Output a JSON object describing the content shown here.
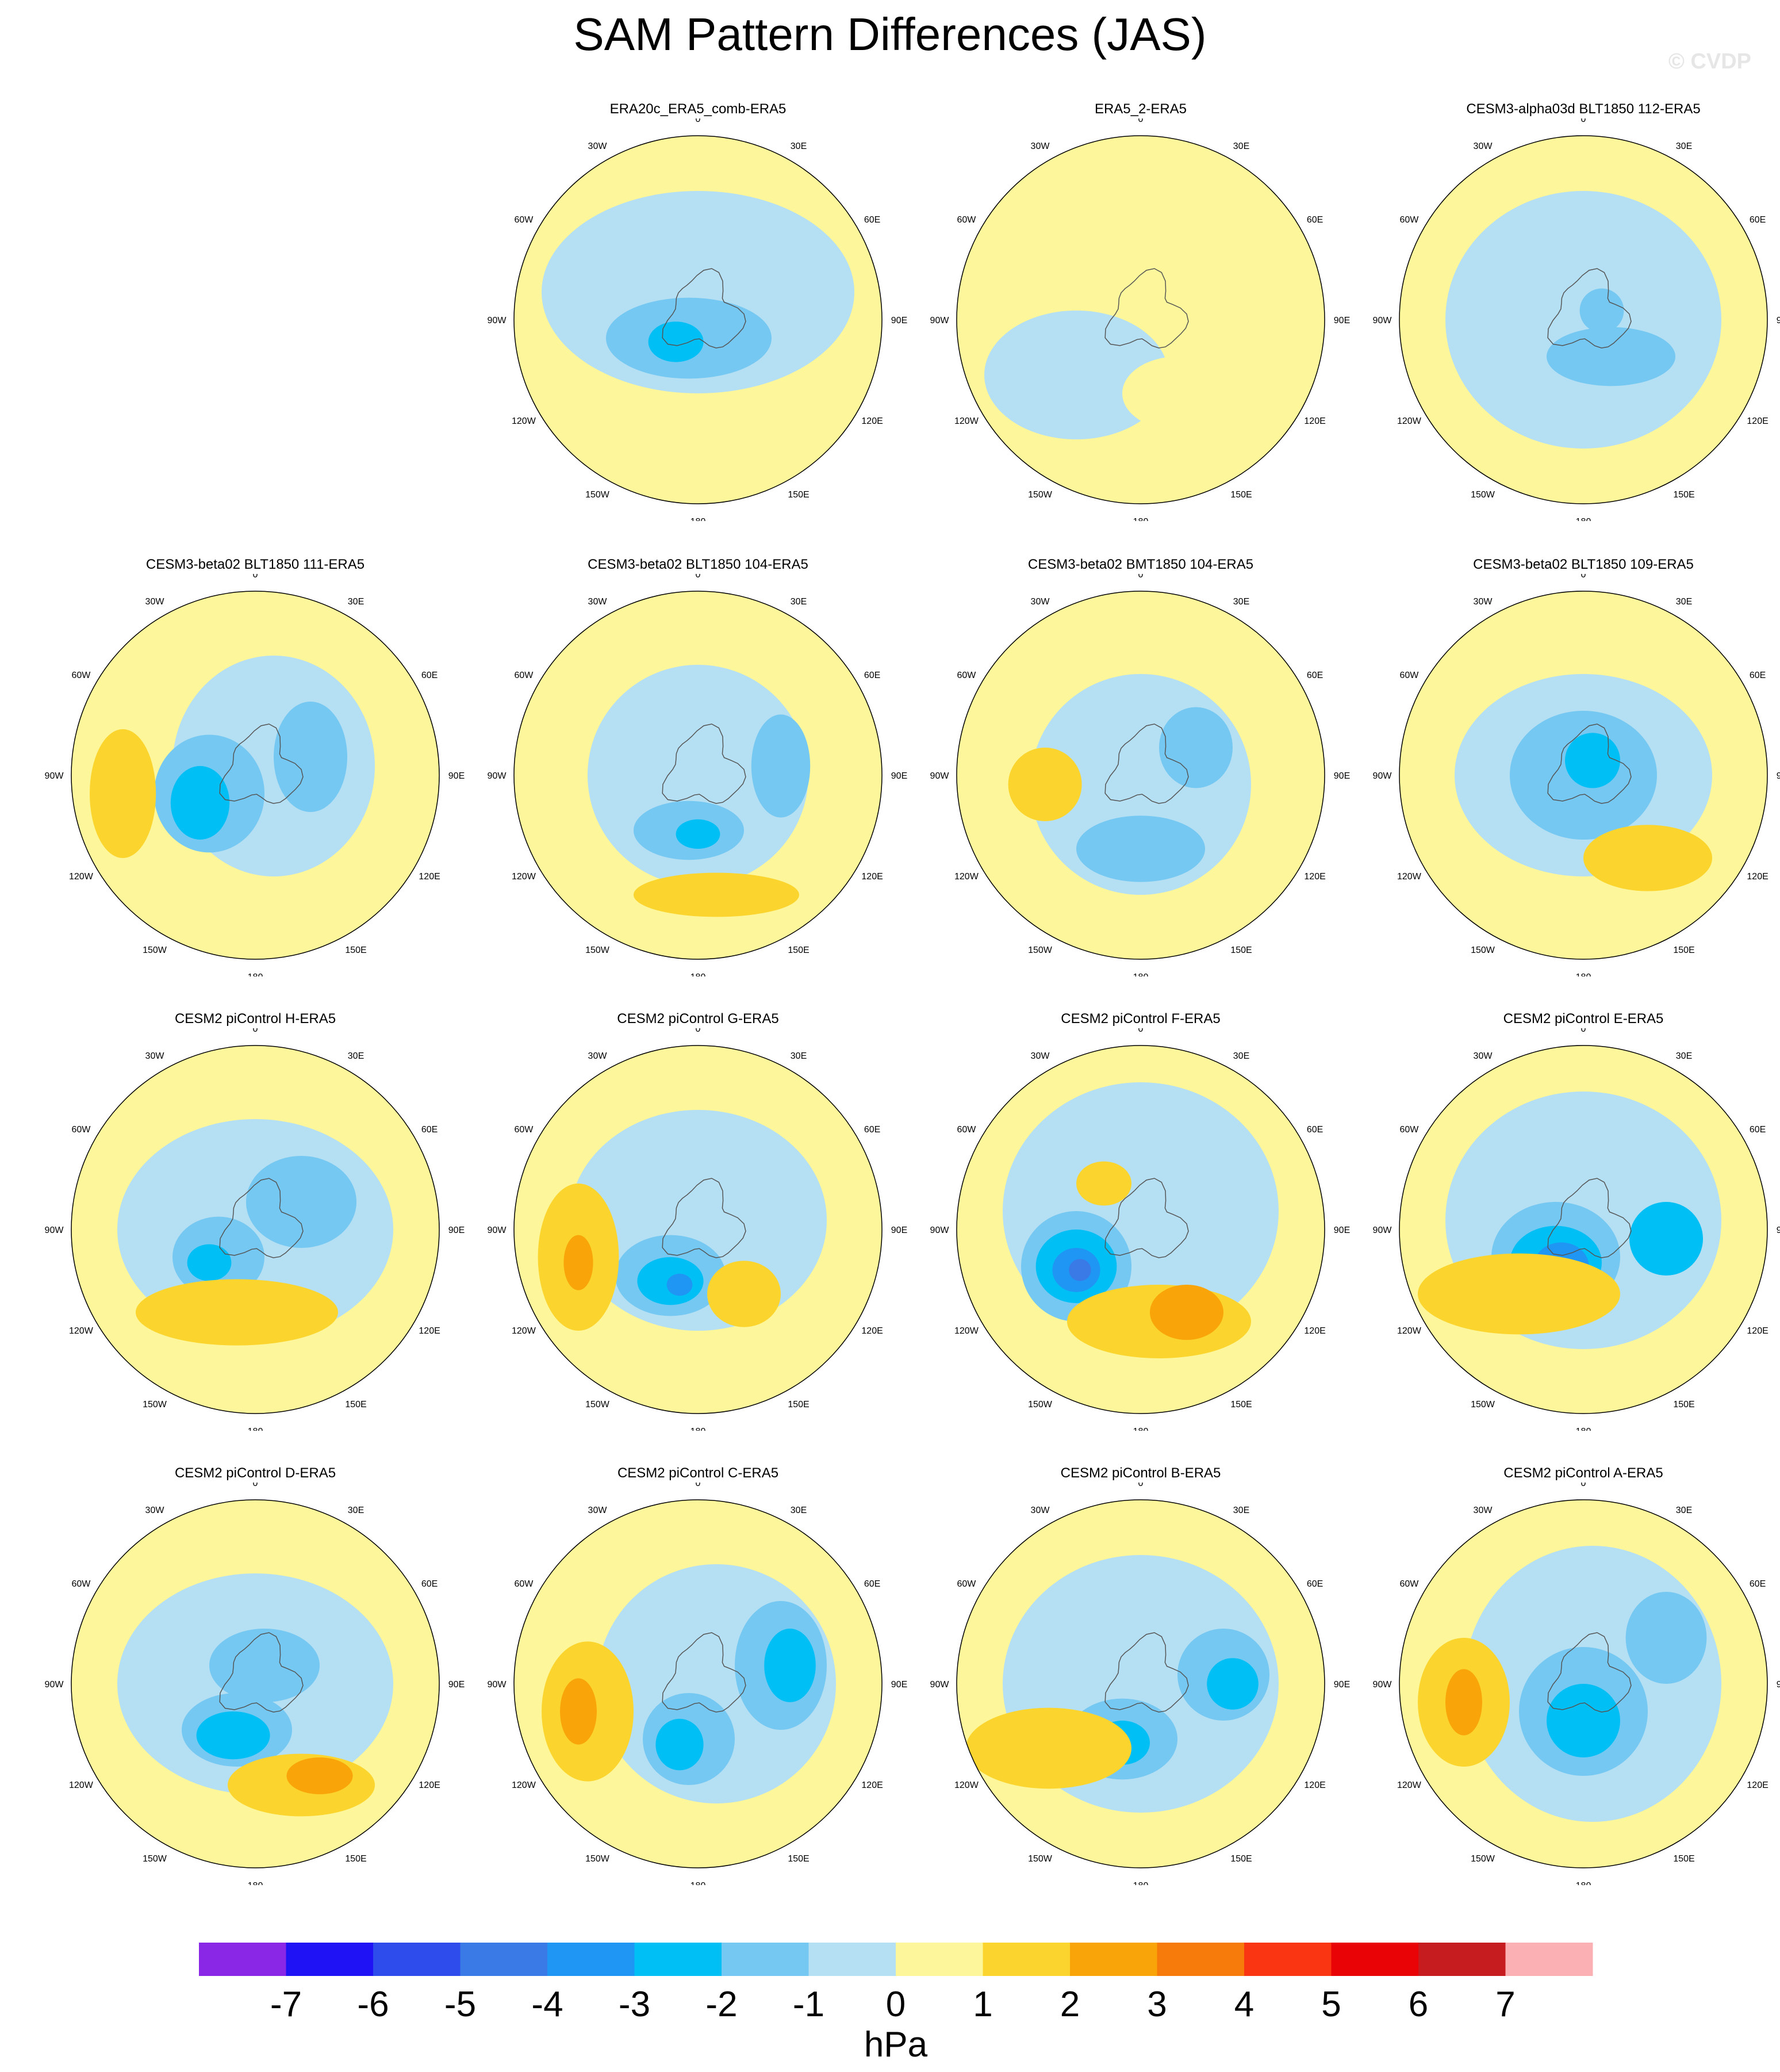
{
  "title": "SAM Pattern Differences (JAS)",
  "watermark": "© CVDP",
  "lon_labels": [
    "0",
    "30E",
    "60E",
    "90E",
    "120E",
    "150E",
    "180",
    "150W",
    "120W",
    "90W",
    "60W",
    "30W"
  ],
  "colorbar": {
    "unit": "hPa",
    "levels": [
      "-7",
      "-6",
      "-5",
      "-4",
      "-3",
      "-2",
      "-1",
      "0",
      "1",
      "2",
      "3",
      "4",
      "5",
      "6",
      "7"
    ],
    "colors": [
      "#8a26e6",
      "#1f12f5",
      "#2e4bec",
      "#3a7ae6",
      "#1f96f4",
      "#00bff5",
      "#75c8f2",
      "#b5dff2",
      "#fdf69a",
      "#fbd52e",
      "#f9a509",
      "#f77b0b",
      "#f93611",
      "#e90206",
      "#c61b1f",
      "#fbb1b4"
    ]
  },
  "chart_data": {
    "type": "heatmap",
    "projection": "south polar stereographic",
    "variable": "SAM pattern difference (sea level pressure)",
    "unit": "hPa",
    "panels": [
      {
        "title": "ERA20c_ERA5_comb-ERA5",
        "min_approx": -3,
        "max_approx": 1
      },
      {
        "title": "ERA5_2-ERA5",
        "min_approx": -2,
        "max_approx": 1
      },
      {
        "title": "CESM3-alpha03d BLT1850 112-ERA5",
        "min_approx": -2,
        "max_approx": 1
      },
      {
        "title": "CESM3-beta02 BLT1850 111-ERA5",
        "min_approx": -3,
        "max_approx": 3
      },
      {
        "title": "CESM3-beta02 BLT1850 104-ERA5",
        "min_approx": -3,
        "max_approx": 2
      },
      {
        "title": "CESM3-beta02 BMT1850 104-ERA5",
        "min_approx": -2,
        "max_approx": 2
      },
      {
        "title": "CESM3-beta02 BLT1850 109-ERA5",
        "min_approx": -3,
        "max_approx": 2
      },
      {
        "title": "CESM2 piControl H-ERA5",
        "min_approx": -3,
        "max_approx": 3
      },
      {
        "title": "CESM2 piControl G-ERA5",
        "min_approx": -4,
        "max_approx": 3
      },
      {
        "title": "CESM2 piControl F-ERA5",
        "min_approx": -5,
        "max_approx": 3
      },
      {
        "title": "CESM2 piControl E-ERA5",
        "min_approx": -5,
        "max_approx": 3
      },
      {
        "title": "CESM2 piControl D-ERA5",
        "min_approx": -3,
        "max_approx": 3
      },
      {
        "title": "CESM2 piControl C-ERA5",
        "min_approx": -3,
        "max_approx": 3
      },
      {
        "title": "CESM2 piControl B-ERA5",
        "min_approx": -3,
        "max_approx": 3
      },
      {
        "title": "CESM2 piControl A-ERA5",
        "min_approx": -3,
        "max_approx": 3
      }
    ]
  }
}
